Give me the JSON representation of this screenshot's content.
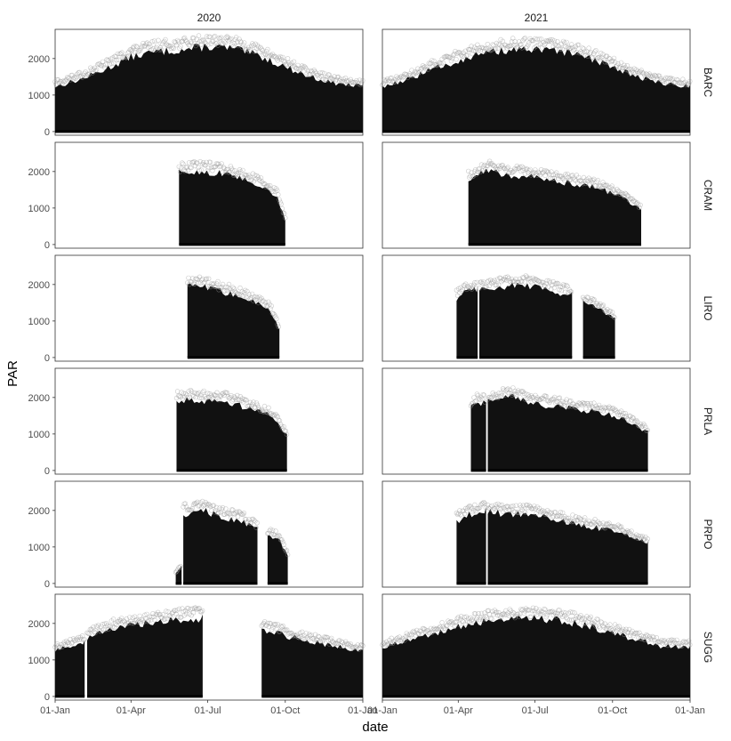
{
  "chart_data": {
    "type": "scatter",
    "facet_columns": [
      "2020",
      "2021"
    ],
    "facet_rows": [
      "BARC",
      "CRAM",
      "LIRO",
      "PRLA",
      "PRPO",
      "SUGG"
    ],
    "xlabel": "date",
    "ylabel": "PAR",
    "x_ticks": [
      "01-Jan",
      "01-Apr",
      "01-Jul",
      "01-Oct",
      "01-Jan"
    ],
    "x_tick_days": [
      0,
      90,
      181,
      273,
      365
    ],
    "y_ticks": [
      0,
      1000,
      2000
    ],
    "ylim": [
      -100,
      2800
    ],
    "panels": [
      {
        "row": "BARC",
        "col": "2020",
        "segments": [
          {
            "start": 0,
            "end": 365,
            "env": [
              [
                0,
                1300
              ],
              [
                30,
                1500
              ],
              [
                60,
                1800
              ],
              [
                90,
                2150
              ],
              [
                120,
                2300
              ],
              [
                150,
                2350
              ],
              [
                180,
                2450
              ],
              [
                210,
                2400
              ],
              [
                240,
                2200
              ],
              [
                270,
                1900
              ],
              [
                300,
                1600
              ],
              [
                330,
                1400
              ],
              [
                365,
                1300
              ]
            ]
          }
        ]
      },
      {
        "row": "BARC",
        "col": "2021",
        "segments": [
          {
            "start": 0,
            "end": 365,
            "env": [
              [
                0,
                1300
              ],
              [
                30,
                1500
              ],
              [
                60,
                1800
              ],
              [
                90,
                2050
              ],
              [
                120,
                2250
              ],
              [
                150,
                2350
              ],
              [
                180,
                2350
              ],
              [
                210,
                2300
              ],
              [
                240,
                2150
              ],
              [
                270,
                1900
              ],
              [
                300,
                1600
              ],
              [
                330,
                1400
              ],
              [
                365,
                1300
              ]
            ]
          }
        ]
      },
      {
        "row": "CRAM",
        "col": "2020",
        "segments": [
          {
            "start": 147,
            "end": 273,
            "env": [
              [
                147,
                2050
              ],
              [
                170,
                2100
              ],
              [
                195,
                2050
              ],
              [
                220,
                1900
              ],
              [
                245,
                1700
              ],
              [
                263,
                1400
              ],
              [
                273,
                700
              ]
            ]
          }
        ]
      },
      {
        "row": "CRAM",
        "col": "2021",
        "segments": [
          {
            "start": 102,
            "end": 307,
            "env": [
              [
                102,
                1850
              ],
              [
                125,
                2150
              ],
              [
                150,
                2000
              ],
              [
                175,
                1950
              ],
              [
                200,
                1850
              ],
              [
                230,
                1750
              ],
              [
                260,
                1600
              ],
              [
                285,
                1350
              ],
              [
                307,
                1000
              ]
            ]
          }
        ]
      },
      {
        "row": "LIRO",
        "col": "2020",
        "segments": [
          {
            "start": 157,
            "end": 266,
            "env": [
              [
                157,
                2050
              ],
              [
                175,
                2050
              ],
              [
                195,
                1900
              ],
              [
                215,
                1800
              ],
              [
                235,
                1600
              ],
              [
                255,
                1400
              ],
              [
                266,
                800
              ]
            ]
          }
        ]
      },
      {
        "row": "LIRO",
        "col": "2021",
        "segments": [
          {
            "start": 88,
            "end": 113,
            "env": [
              [
                88,
                1700
              ],
              [
                100,
                1900
              ],
              [
                113,
                1950
              ]
            ]
          },
          {
            "start": 115,
            "end": 225,
            "env": [
              [
                115,
                1950
              ],
              [
                140,
                2050
              ],
              [
                165,
                2100
              ],
              [
                195,
                1950
              ],
              [
                225,
                1800
              ]
            ]
          },
          {
            "start": 238,
            "end": 276,
            "env": [
              [
                238,
                1600
              ],
              [
                257,
                1400
              ],
              [
                276,
                1100
              ]
            ]
          }
        ]
      },
      {
        "row": "PRLA",
        "col": "2020",
        "segments": [
          {
            "start": 144,
            "end": 275,
            "env": [
              [
                144,
                2000
              ],
              [
                165,
                2050
              ],
              [
                185,
                2000
              ],
              [
                210,
                1950
              ],
              [
                235,
                1750
              ],
              [
                258,
                1550
              ],
              [
                275,
                1000
              ]
            ]
          }
        ]
      },
      {
        "row": "PRLA",
        "col": "2021",
        "segments": [
          {
            "start": 105,
            "end": 123,
            "env": [
              [
                105,
                1800
              ],
              [
                113,
                2000
              ],
              [
                123,
                1900
              ]
            ]
          },
          {
            "start": 125,
            "end": 315,
            "env": [
              [
                125,
                2000
              ],
              [
                155,
                2100
              ],
              [
                185,
                1900
              ],
              [
                220,
                1800
              ],
              [
                255,
                1700
              ],
              [
                285,
                1500
              ],
              [
                315,
                1100
              ]
            ]
          }
        ]
      },
      {
        "row": "PRPO",
        "col": "2020",
        "segments": [
          {
            "start": 143,
            "end": 150,
            "env": [
              [
                143,
                300
              ],
              [
                150,
                500
              ]
            ]
          },
          {
            "start": 152,
            "end": 240,
            "env": [
              [
                152,
                2000
              ],
              [
                175,
                2100
              ],
              [
                200,
                1900
              ],
              [
                222,
                1800
              ],
              [
                240,
                1550
              ]
            ]
          },
          {
            "start": 252,
            "end": 276,
            "env": [
              [
                252,
                1400
              ],
              [
                265,
                1300
              ],
              [
                276,
                800
              ]
            ]
          }
        ]
      },
      {
        "row": "PRPO",
        "col": "2021",
        "segments": [
          {
            "start": 88,
            "end": 123,
            "env": [
              [
                88,
                1800
              ],
              [
                105,
                2000
              ],
              [
                123,
                2100
              ]
            ]
          },
          {
            "start": 125,
            "end": 315,
            "env": [
              [
                125,
                2050
              ],
              [
                155,
                2000
              ],
              [
                185,
                1950
              ],
              [
                220,
                1750
              ],
              [
                255,
                1600
              ],
              [
                285,
                1450
              ],
              [
                315,
                1150
              ]
            ]
          }
        ]
      },
      {
        "row": "SUGG",
        "col": "2020",
        "segments": [
          {
            "start": 0,
            "end": 35,
            "env": [
              [
                0,
                1350
              ],
              [
                18,
                1450
              ],
              [
                35,
                1550
              ]
            ]
          },
          {
            "start": 38,
            "end": 175,
            "env": [
              [
                38,
                1700
              ],
              [
                70,
                1950
              ],
              [
                105,
                2100
              ],
              [
                140,
                2200
              ],
              [
                175,
                2250
              ]
            ]
          },
          {
            "start": 245,
            "end": 365,
            "env": [
              [
                245,
                1950
              ],
              [
                280,
                1700
              ],
              [
                320,
                1500
              ],
              [
                365,
                1300
              ]
            ]
          }
        ]
      },
      {
        "row": "SUGG",
        "col": "2021",
        "segments": [
          {
            "start": 0,
            "end": 365,
            "env": [
              [
                0,
                1400
              ],
              [
                30,
                1600
              ],
              [
                60,
                1800
              ],
              [
                90,
                2000
              ],
              [
                120,
                2150
              ],
              [
                150,
                2200
              ],
              [
                180,
                2250
              ],
              [
                210,
                2200
              ],
              [
                240,
                2050
              ],
              [
                270,
                1850
              ],
              [
                300,
                1650
              ],
              [
                330,
                1450
              ],
              [
                365,
                1400
              ]
            ]
          }
        ]
      }
    ]
  }
}
